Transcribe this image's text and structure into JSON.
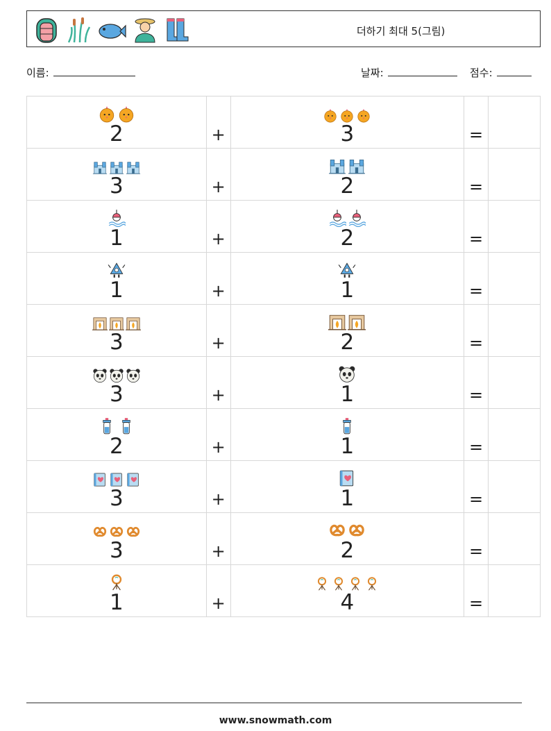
{
  "header": {
    "title": "더하기 최대 5(그림)",
    "icons": [
      "raft-icon",
      "reeds-icon",
      "fish-icon",
      "farmer-icon",
      "rubber-boots-icon"
    ]
  },
  "meta": {
    "name_label": "이름:",
    "date_label": "날짜:",
    "score_label": "점수:"
  },
  "problems": [
    {
      "left": {
        "count": "2",
        "icon": "chick-icon"
      },
      "right": {
        "count": "3",
        "icon": "chick-icon"
      }
    },
    {
      "left": {
        "count": "3",
        "icon": "castle-icon"
      },
      "right": {
        "count": "2",
        "icon": "castle-icon"
      }
    },
    {
      "left": {
        "count": "1",
        "icon": "fishing-bobber-icon"
      },
      "right": {
        "count": "2",
        "icon": "fishing-bobber-icon"
      }
    },
    {
      "left": {
        "count": "1",
        "icon": "robot-icon"
      },
      "right": {
        "count": "1",
        "icon": "robot-icon"
      }
    },
    {
      "left": {
        "count": "3",
        "icon": "fireplace-icon"
      },
      "right": {
        "count": "2",
        "icon": "fireplace-icon"
      }
    },
    {
      "left": {
        "count": "3",
        "icon": "panda-icon"
      },
      "right": {
        "count": "1",
        "icon": "panda-icon"
      }
    },
    {
      "left": {
        "count": "2",
        "icon": "baby-bottle-icon"
      },
      "right": {
        "count": "1",
        "icon": "baby-bottle-icon"
      }
    },
    {
      "left": {
        "count": "3",
        "icon": "heart-book-icon"
      },
      "right": {
        "count": "1",
        "icon": "heart-book-icon"
      }
    },
    {
      "left": {
        "count": "3",
        "icon": "pretzel-icon"
      },
      "right": {
        "count": "2",
        "icon": "pretzel-icon"
      }
    },
    {
      "left": {
        "count": "1",
        "icon": "wreath-stand-icon"
      },
      "right": {
        "count": "4",
        "icon": "wreath-stand-icon"
      }
    }
  ],
  "operators": {
    "plus": "+",
    "equals": "="
  },
  "footer": {
    "website": "www.snowmath.com"
  },
  "colors": {
    "border": "#333333",
    "grid": "#d8d8d8",
    "orange": "#f5a623",
    "blue": "#5aa7e0",
    "pink": "#e8607a"
  }
}
